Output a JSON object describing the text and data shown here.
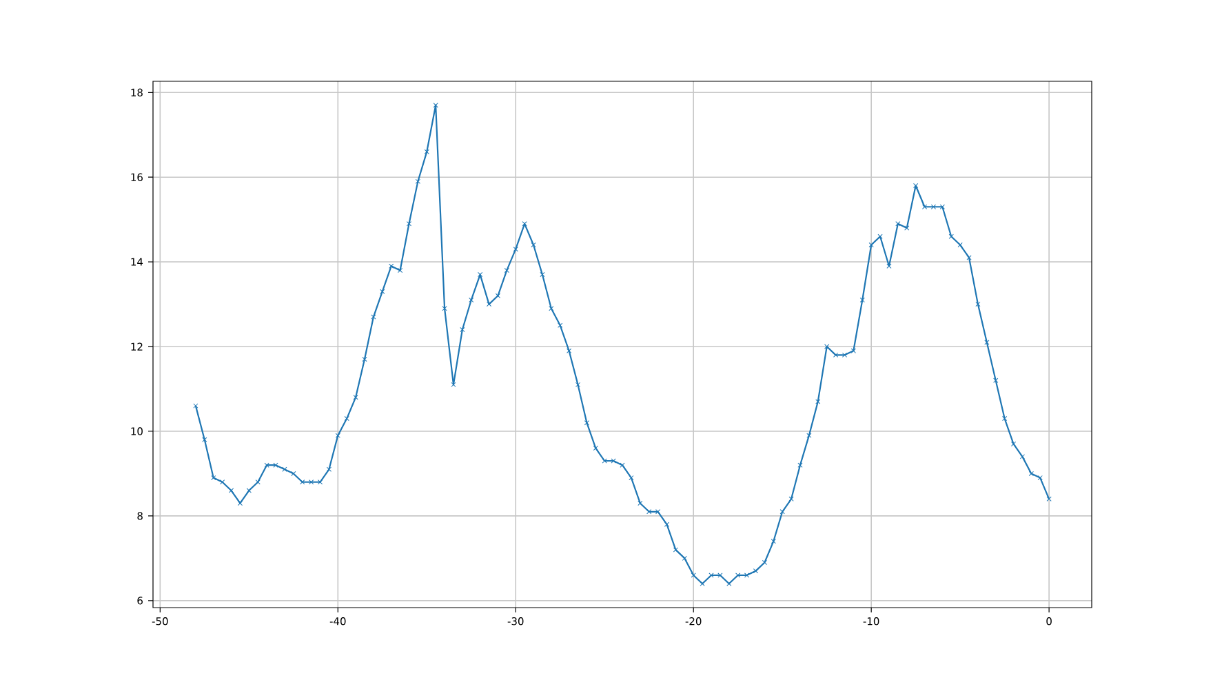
{
  "chart_data": {
    "type": "line",
    "x": [
      -48,
      -47.5,
      -47,
      -46.5,
      -46,
      -45.5,
      -45,
      -44.5,
      -44,
      -43.5,
      -43,
      -42.5,
      -42,
      -41.5,
      -41,
      -40.5,
      -40,
      -39.5,
      -39,
      -38.5,
      -38,
      -37.5,
      -37,
      -36.5,
      -36,
      -35.5,
      -35,
      -34.5,
      -34,
      -33.5,
      -33,
      -32.5,
      -32,
      -31.5,
      -31,
      -30.5,
      -30,
      -29.5,
      -29,
      -28.5,
      -28,
      -27.5,
      -27,
      -26.5,
      -26,
      -25.5,
      -25,
      -24.5,
      -24,
      -23.5,
      -23,
      -22.5,
      -22,
      -21.5,
      -21,
      -20.5,
      -20,
      -19.5,
      -19,
      -18.5,
      -18,
      -17.5,
      -17,
      -16.5,
      -16,
      -15.5,
      -15,
      -14.5,
      -14,
      -13.5,
      -13,
      -12.5,
      -12,
      -11.5,
      -11,
      -10.5,
      -10,
      -9.5,
      -9,
      -8.5,
      -8,
      -7.5,
      -7,
      -6.5,
      -6,
      -5.5,
      -5,
      -4.5,
      -4,
      -3.5,
      -3,
      -2.5,
      -2,
      -1.5,
      -1,
      -0.5,
      0
    ],
    "values": [
      10.6,
      9.8,
      8.9,
      8.8,
      8.6,
      8.3,
      8.6,
      8.8,
      9.2,
      9.2,
      9.1,
      9.0,
      8.8,
      8.8,
      8.8,
      9.1,
      9.9,
      10.3,
      10.8,
      11.7,
      12.7,
      13.3,
      13.9,
      13.8,
      14.9,
      15.9,
      16.6,
      17.7,
      12.9,
      11.1,
      12.4,
      13.1,
      13.7,
      13.0,
      13.2,
      13.8,
      14.3,
      14.9,
      14.4,
      13.7,
      12.9,
      12.5,
      11.9,
      11.1,
      10.2,
      9.6,
      9.3,
      9.3,
      9.2,
      8.9,
      8.3,
      8.1,
      8.1,
      7.8,
      7.2,
      7.0,
      6.6,
      6.4,
      6.6,
      6.6,
      6.4,
      6.6,
      6.6,
      6.7,
      6.9,
      7.4,
      8.1,
      8.4,
      9.2,
      9.9,
      10.7,
      12.0,
      11.8,
      11.8,
      11.9,
      13.1,
      14.4,
      14.6,
      13.9,
      14.9,
      14.8,
      15.8,
      15.3,
      15.3,
      15.3,
      14.6,
      14.4,
      14.1,
      13.0,
      12.1,
      11.2,
      10.3,
      9.7,
      9.4,
      9.0,
      8.9,
      8.4
    ],
    "color": "#1f77b4",
    "xlim": [
      -50.4,
      2.4
    ],
    "ylim": [
      5.835,
      18.265
    ],
    "xticks": [
      -50,
      -40,
      -30,
      -20,
      -10,
      0
    ],
    "yticks": [
      6,
      8,
      10,
      12,
      14,
      16,
      18
    ],
    "grid": true,
    "marker": "cross"
  }
}
